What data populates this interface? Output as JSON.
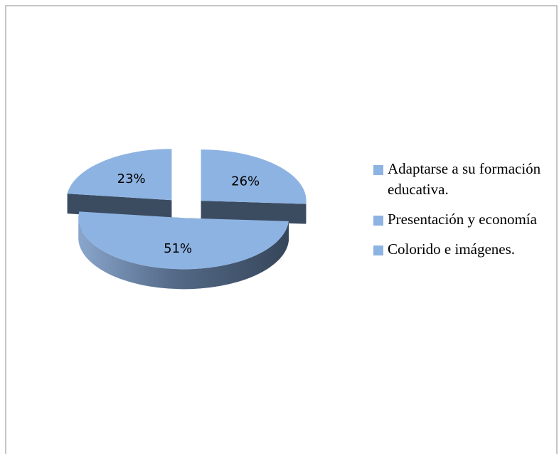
{
  "chart_data": {
    "type": "pie3d",
    "categories": [
      "Adaptarse a su formación educativa.",
      "Presentación y economía",
      "Colorido e imágenes."
    ],
    "values": [
      26,
      51,
      23
    ],
    "value_labels": [
      "26%",
      "51%",
      "23%"
    ],
    "colors": [
      "#8db3e2",
      "#8db3e2",
      "#8db3e2"
    ],
    "exploded": true,
    "legend": "right"
  }
}
